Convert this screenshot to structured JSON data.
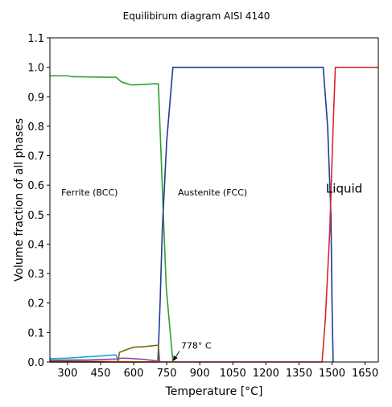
{
  "chart_data": {
    "type": "line",
    "title": "Equilibirum diagram AISI 4140",
    "xlabel": "Temperature [°C]",
    "ylabel": "Volume fraction of all phases",
    "xlim": [
      220,
      1710
    ],
    "ylim": [
      0.0,
      1.1
    ],
    "xticks": [
      300,
      450,
      600,
      750,
      900,
      1050,
      1200,
      1350,
      1500,
      1650
    ],
    "yticks": [
      0.0,
      0.1,
      0.2,
      0.3,
      0.4,
      0.5,
      0.6,
      0.7,
      0.8,
      0.9,
      1.0,
      1.1
    ],
    "ytick_labels": [
      "0.0",
      "0.1",
      "0.2",
      "0.3",
      "0.4",
      "0.5",
      "0.6",
      "0.7",
      "0.8",
      "0.9",
      "1.0",
      "1.1"
    ],
    "grid": false,
    "legend": "none",
    "region_labels": [
      {
        "text": "Ferrite (BCC)",
        "x": 400,
        "y": 0.565
      },
      {
        "text": "Austenite (FCC)",
        "x": 958,
        "y": 0.565
      },
      {
        "text": "Liquid",
        "x": 1555,
        "y": 0.575
      }
    ],
    "annotation": {
      "text": "778° C",
      "x_text": 815,
      "y_text": 0.045,
      "x_point": 778,
      "y_point": 0.0
    },
    "series": [
      {
        "color": "#2ca02c",
        "x": [
          220,
          300,
          320,
          400,
          520,
          545,
          590,
          650,
          690,
          712,
          722,
          732,
          748,
          778
        ],
        "y": [
          0.971,
          0.971,
          0.968,
          0.967,
          0.966,
          0.95,
          0.94,
          0.942,
          0.944,
          0.944,
          0.75,
          0.55,
          0.25,
          0.0
        ]
      },
      {
        "color": "#1f3a93",
        "x": [
          220,
          710,
          720,
          730,
          750,
          778,
          1390,
          1460,
          1480,
          1495,
          1500,
          1505
        ],
        "y": [
          0.0,
          0.0,
          0.2,
          0.45,
          0.75,
          1.0,
          1.0,
          1.0,
          0.8,
          0.5,
          0.2,
          0.0
        ]
      },
      {
        "color": "#d62728",
        "x": [
          220,
          1455,
          1470,
          1490,
          1505,
          1515,
          1710
        ],
        "y": [
          0.0,
          0.0,
          0.15,
          0.45,
          0.8,
          1.0,
          1.0
        ]
      },
      {
        "color": "#17a6d6",
        "x": [
          220,
          300,
          400,
          520,
          532
        ],
        "y": [
          0.011,
          0.013,
          0.018,
          0.024,
          0.0
        ]
      },
      {
        "color": "#7a6a12",
        "x": [
          530,
          535,
          560,
          600,
          650,
          700,
          712,
          718
        ],
        "y": [
          0.0,
          0.032,
          0.04,
          0.05,
          0.052,
          0.056,
          0.056,
          0.0
        ]
      },
      {
        "color": "#8e44ad",
        "x": [
          220,
          400,
          525,
          545,
          580,
          640,
          700,
          712
        ],
        "y": [
          0.006,
          0.007,
          0.01,
          0.013,
          0.012,
          0.009,
          0.004,
          0.0
        ]
      },
      {
        "color": "#ff7f0e",
        "x": [
          220,
          300,
          450,
          600,
          712
        ],
        "y": [
          0.003,
          0.003,
          0.002,
          0.001,
          0.0
        ]
      },
      {
        "color": "#8c564b",
        "x": [
          220,
          300,
          400,
          480
        ],
        "y": [
          0.004,
          0.003,
          0.002,
          0.0
        ]
      }
    ]
  }
}
